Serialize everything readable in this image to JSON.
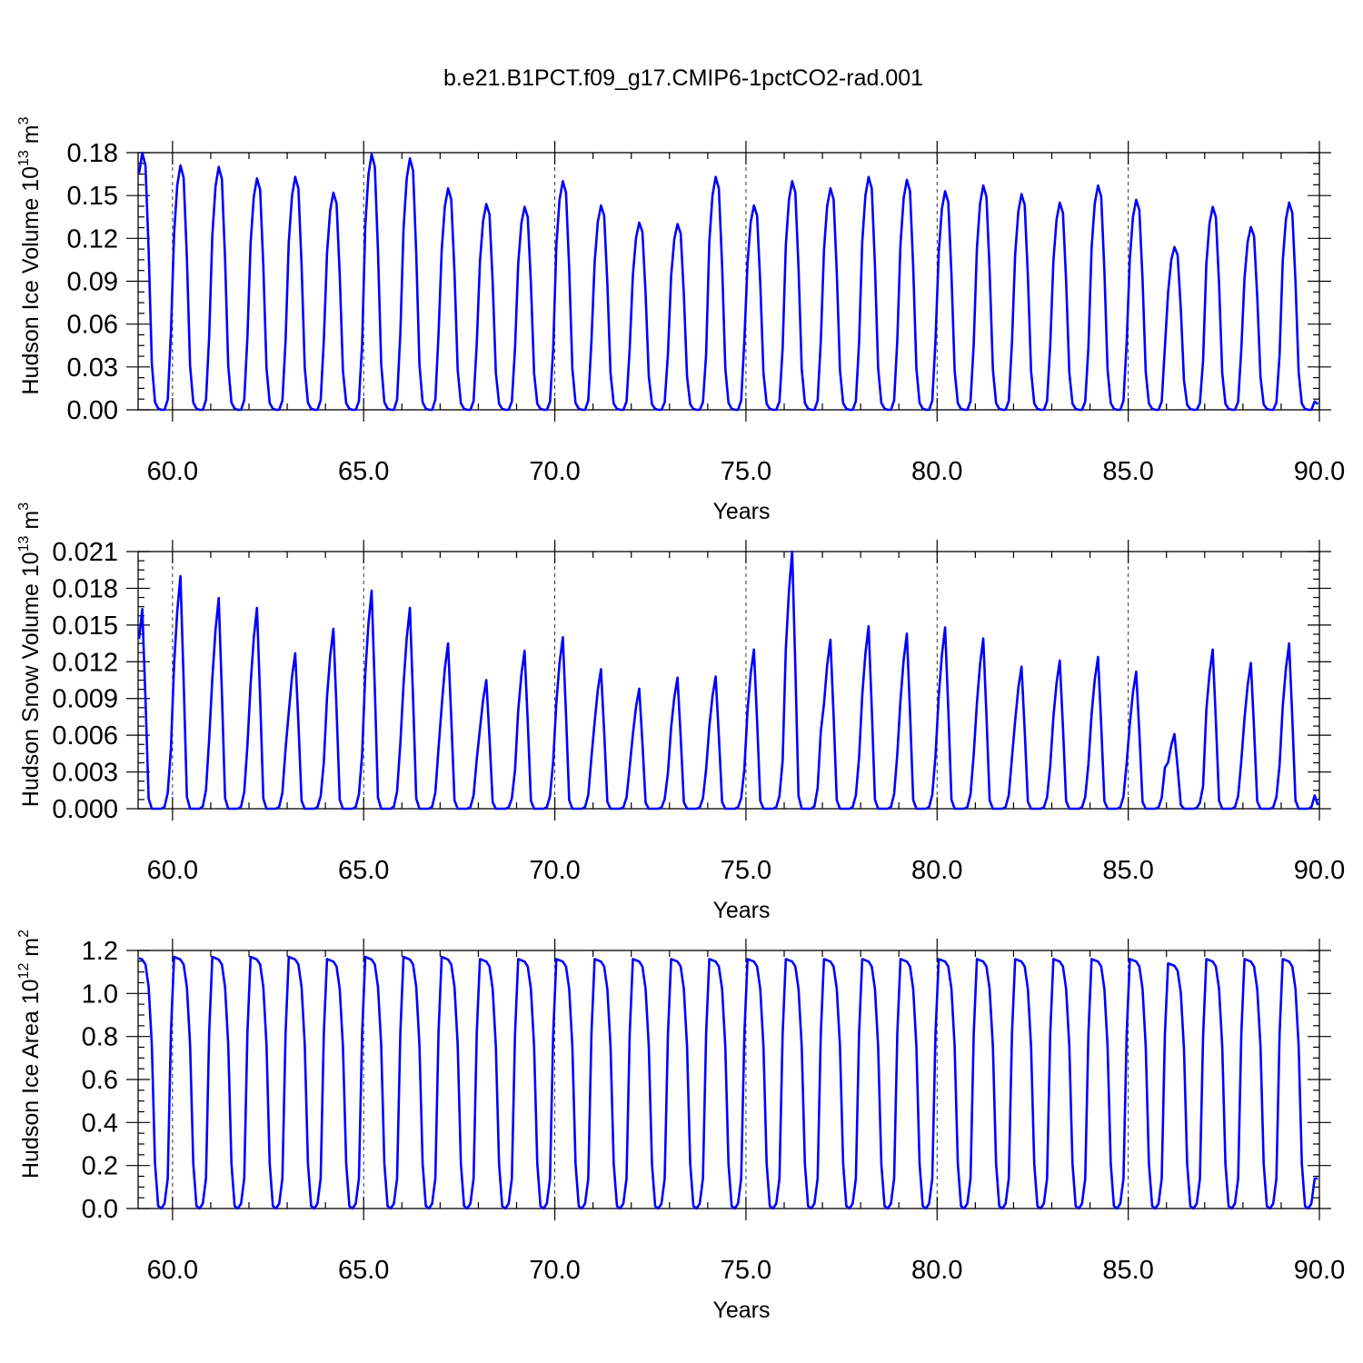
{
  "figure_title": "b.e21.B1PCT.f09_g17.CMIP6-1pctCO2-rad.001",
  "series_color": "#0000ff",
  "chart_data": [
    {
      "type": "line",
      "ylabel_main": "Hudson Ice Volume 10",
      "ylabel_exp": "13",
      "ylabel_unit": " m",
      "ylabel_unit_exp": "3",
      "xlabel": "Years",
      "xlim": [
        59.1,
        90.0
      ],
      "ylim": [
        0.0,
        0.18
      ],
      "xticks": [
        "60.0",
        "65.0",
        "70.0",
        "75.0",
        "80.0",
        "85.0",
        "90.0"
      ],
      "yticks": [
        "0.00",
        "0.03",
        "0.06",
        "0.09",
        "0.12",
        "0.15",
        "0.18"
      ],
      "grid": "dashed vertical at major x ticks",
      "start_value": 0.073,
      "peaks": [
        0.18,
        0.171,
        0.17,
        0.162,
        0.163,
        0.152,
        0.179,
        0.176,
        0.155,
        0.144,
        0.142,
        0.16,
        0.143,
        0.131,
        0.13,
        0.163,
        0.143,
        0.16,
        0.155,
        0.163,
        0.161,
        0.153,
        0.157,
        0.151,
        0.145,
        0.157,
        0.147,
        0.114,
        0.142,
        0.128,
        0.145
      ],
      "end_value": 0.004
    },
    {
      "type": "line",
      "ylabel_main": "Hudson Snow Volume 10",
      "ylabel_exp": "13",
      "ylabel_unit": " m",
      "ylabel_unit_exp": "3",
      "xlabel": "Years",
      "xlim": [
        59.1,
        90.0
      ],
      "ylim": [
        0.0,
        0.021
      ],
      "xticks": [
        "60.0",
        "65.0",
        "70.0",
        "75.0",
        "80.0",
        "85.0",
        "90.0"
      ],
      "yticks": [
        "0.000",
        "0.003",
        "0.006",
        "0.009",
        "0.012",
        "0.015",
        "0.018",
        "0.021"
      ],
      "grid": "dashed vertical at major x ticks",
      "start_value": 0.0037,
      "peaks": [
        0.0163,
        0.019,
        0.0172,
        0.0164,
        0.0127,
        0.0147,
        0.0178,
        0.0164,
        0.0135,
        0.0105,
        0.0129,
        0.014,
        0.0114,
        0.0098,
        0.0107,
        0.0108,
        0.013,
        0.021,
        0.0138,
        0.0149,
        0.0143,
        0.0148,
        0.0139,
        0.0116,
        0.0121,
        0.0124,
        0.0112,
        0.0061,
        0.013,
        0.0119,
        0.0135
      ],
      "end_value": 0.0003
    },
    {
      "type": "line",
      "ylabel_main": "Hudson Ice Area 10",
      "ylabel_exp": "12",
      "ylabel_unit": " m",
      "ylabel_unit_exp": "2",
      "xlabel": "Years",
      "xlim": [
        59.1,
        90.0
      ],
      "ylim": [
        0.0,
        1.2
      ],
      "xticks": [
        "60.0",
        "65.0",
        "70.0",
        "75.0",
        "80.0",
        "85.0",
        "90.0"
      ],
      "yticks": [
        "0.0",
        "0.2",
        "0.4",
        "0.6",
        "0.8",
        "1.0",
        "1.2"
      ],
      "grid": "dashed vertical at major x ticks",
      "start_value": 1.1,
      "peaks": [
        1.17,
        1.17,
        1.17,
        1.17,
        1.17,
        1.16,
        1.17,
        1.17,
        1.17,
        1.16,
        1.16,
        1.16,
        1.16,
        1.16,
        1.16,
        1.16,
        1.16,
        1.16,
        1.16,
        1.16,
        1.16,
        1.16,
        1.16,
        1.16,
        1.16,
        1.16,
        1.16,
        1.14,
        1.16,
        1.16,
        1.16
      ],
      "end_value": 0.14
    }
  ]
}
